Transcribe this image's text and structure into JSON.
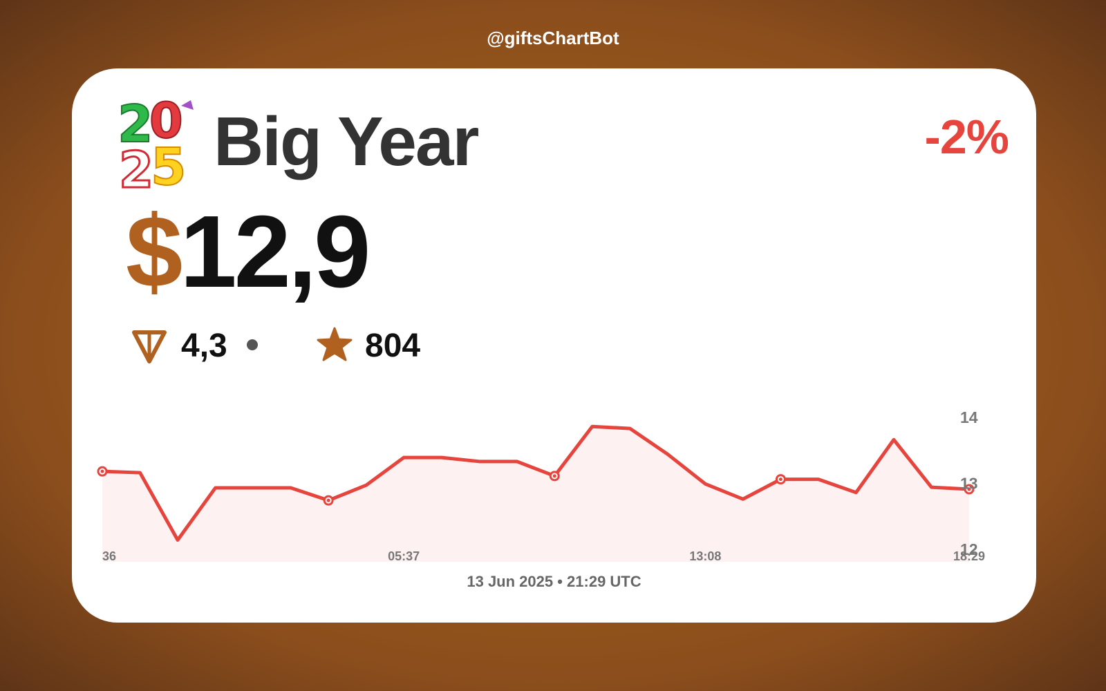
{
  "header": {
    "bot_handle": "@giftsChartBot"
  },
  "gift": {
    "name": "Big Year",
    "icon": "2025-balloon-numbers-icon"
  },
  "price": {
    "currency_symbol": "$",
    "value": "12,9",
    "change": "-2%"
  },
  "alt_prices": {
    "ton_value": "4,3",
    "ton_icon": "ton-icon",
    "stars_value": "804",
    "star_icon": "star-icon"
  },
  "footer": {
    "timestamp": "13 Jun 2025 • 21:29 UTC"
  },
  "colors": {
    "accent": "#b0601f",
    "negative": "#e5453d",
    "text": "#111111"
  },
  "chart_data": {
    "type": "area",
    "y_ticks": [
      "14",
      "13",
      "12"
    ],
    "x_ticks": [
      {
        "label": "36",
        "index": 0
      },
      {
        "label": "05:37",
        "index": 8
      },
      {
        "label": "13:08",
        "index": 16
      },
      {
        "label": "18:29",
        "index": 23
      }
    ],
    "ylim": [
      11.8,
      14.25
    ],
    "values": [
      13.17,
      13.15,
      12.13,
      12.92,
      12.92,
      12.92,
      12.73,
      12.96,
      13.38,
      13.38,
      13.32,
      13.32,
      13.1,
      13.85,
      13.82,
      13.43,
      12.98,
      12.75,
      13.05,
      13.05,
      12.85,
      13.65,
      12.93,
      12.9
    ],
    "markers": [
      0,
      6,
      12,
      18,
      23
    ],
    "line_color": "#e5453d",
    "fill_color": "#fdf2f1"
  }
}
